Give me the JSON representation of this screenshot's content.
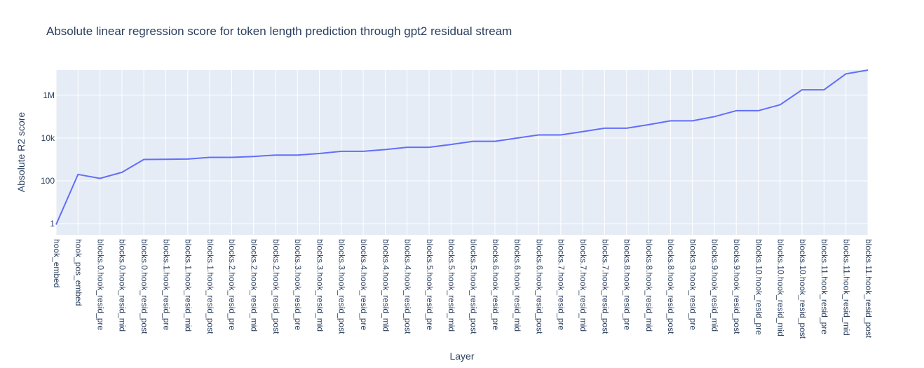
{
  "chart_data": {
    "type": "line",
    "title": "Absolute linear regression score for token length prediction through gpt2 residual stream",
    "xlabel": "Layer",
    "ylabel": "Absolute R2 score",
    "y_scale": "log",
    "ylim": [
      0.3,
      15000000
    ],
    "y_ticks": [
      1,
      100,
      10000,
      1000000
    ],
    "y_tick_labels": [
      "1",
      "100",
      "10k",
      "1M"
    ],
    "grid": true,
    "line_color": "#636efa",
    "plot_bg": "#e5ecf6",
    "categories": [
      "hook_embed",
      "hook_pos_embed",
      "blocks.0.hook_resid_pre",
      "blocks.0.hook_resid_mid",
      "blocks.0.hook_resid_post",
      "blocks.1.hook_resid_pre",
      "blocks.1.hook_resid_mid",
      "blocks.1.hook_resid_post",
      "blocks.2.hook_resid_pre",
      "blocks.2.hook_resid_mid",
      "blocks.2.hook_resid_post",
      "blocks.3.hook_resid_pre",
      "blocks.3.hook_resid_mid",
      "blocks.3.hook_resid_post",
      "blocks.4.hook_resid_pre",
      "blocks.4.hook_resid_mid",
      "blocks.4.hook_resid_post",
      "blocks.5.hook_resid_pre",
      "blocks.5.hook_resid_mid",
      "blocks.5.hook_resid_post",
      "blocks.6.hook_resid_pre",
      "blocks.6.hook_resid_mid",
      "blocks.6.hook_resid_post",
      "blocks.7.hook_resid_pre",
      "blocks.7.hook_resid_mid",
      "blocks.7.hook_resid_post",
      "blocks.8.hook_resid_pre",
      "blocks.8.hook_resid_mid",
      "blocks.8.hook_resid_post",
      "blocks.9.hook_resid_pre",
      "blocks.9.hook_resid_mid",
      "blocks.9.hook_resid_post",
      "blocks.10.hook_resid_pre",
      "blocks.10.hook_resid_mid",
      "blocks.10.hook_resid_post",
      "blocks.11.hook_resid_pre",
      "blocks.11.hook_resid_mid",
      "blocks.11.hook_resid_post"
    ],
    "values": [
      0.9,
      200,
      130,
      250,
      1000,
      1020,
      1050,
      1250,
      1250,
      1380,
      1600,
      1600,
      1900,
      2400,
      2400,
      2900,
      3700,
      3700,
      5000,
      7000,
      7000,
      10000,
      14000,
      14000,
      20000,
      29000,
      29000,
      42000,
      64000,
      64000,
      100000,
      190000,
      190000,
      360000,
      1800000,
      1800000,
      10000000,
      15000000
    ]
  }
}
